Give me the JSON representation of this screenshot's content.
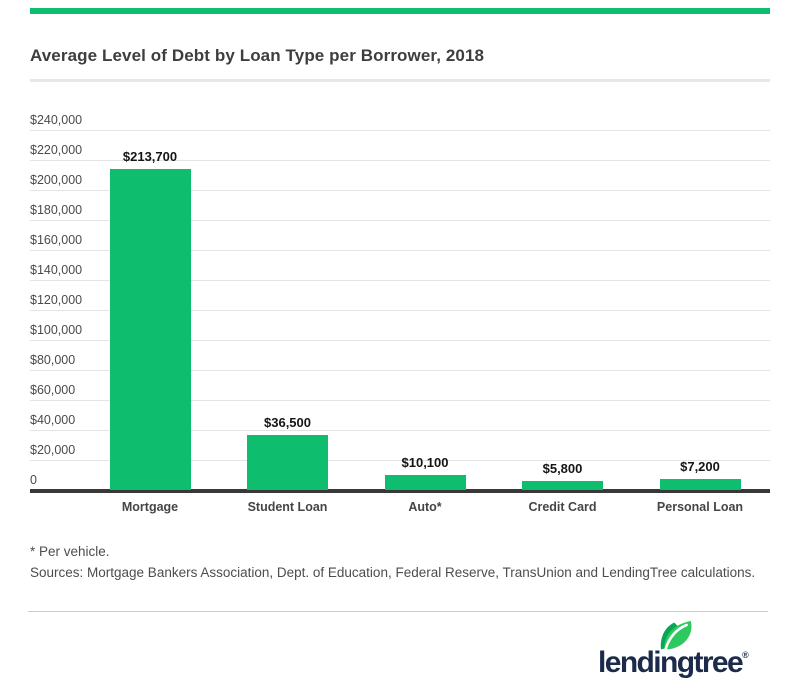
{
  "colors": {
    "accent_green": "#0FBD6E",
    "leaf_green_light": "#2BC95E",
    "leaf_green_dark": "#0AA653",
    "logo_navy": "#1B2B49",
    "grid_gray": "#E4E4E4",
    "axis_dark": "#383838"
  },
  "header": {
    "title": "Average Level of Debt by Loan Type per Borrower, 2018"
  },
  "chart_data": {
    "type": "bar",
    "title": "Average Level of Debt by Loan Type per Borrower, 2018",
    "categories": [
      "Mortgage",
      "Student Loan",
      "Auto*",
      "Credit Card",
      "Personal Loan"
    ],
    "values": [
      213700,
      36500,
      10100,
      5800,
      7200
    ],
    "value_labels": [
      "$213,700",
      "$36,500",
      "$10,100",
      "$5,800",
      "$7,200"
    ],
    "xlabel": "",
    "ylabel": "",
    "ylim": [
      0,
      240000
    ],
    "grid": true,
    "legend": false,
    "bar_color": "#0FBD6E",
    "y_ticks": [
      {
        "label": "$240,000",
        "value": 240000
      },
      {
        "label": "$220,000",
        "value": 220000
      },
      {
        "label": "$200,000",
        "value": 200000
      },
      {
        "label": "$180,000",
        "value": 180000
      },
      {
        "label": "$160,000",
        "value": 160000
      },
      {
        "label": "$140,000",
        "value": 140000
      },
      {
        "label": "$120,000",
        "value": 120000
      },
      {
        "label": "$100,000",
        "value": 100000
      },
      {
        "label": "$80,000",
        "value": 80000
      },
      {
        "label": "$60,000",
        "value": 60000
      },
      {
        "label": "$40,000",
        "value": 40000
      },
      {
        "label": "$20,000",
        "value": 20000
      },
      {
        "label": "0",
        "value": 0
      }
    ]
  },
  "footnotes": {
    "note1": "* Per vehicle.",
    "note2": "Sources: Mortgage Bankers Association, Dept. of Education, Federal Reserve, TransUnion and LendingTree calculations."
  },
  "footer": {
    "logo_text": "lendingtree",
    "registered": "®"
  }
}
